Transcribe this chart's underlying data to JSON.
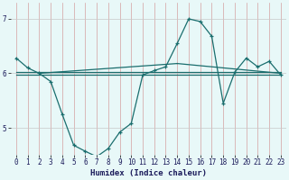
{
  "xlabel": "Humidex (Indice chaleur)",
  "bg_color": "#e8f8f8",
  "grid_color_v": "#d4a0a0",
  "grid_color_h": "#c8c8c8",
  "line_color": "#1a6e6e",
  "xlim": [
    -0.5,
    23.5
  ],
  "ylim": [
    4.5,
    7.3
  ],
  "yticks": [
    5,
    6,
    7
  ],
  "xticks": [
    0,
    1,
    2,
    3,
    4,
    5,
    6,
    7,
    8,
    9,
    10,
    11,
    12,
    13,
    14,
    15,
    16,
    17,
    18,
    19,
    20,
    21,
    22,
    23
  ],
  "main_line_x": [
    0,
    1,
    2,
    3,
    4,
    5,
    6,
    7,
    8,
    9,
    10,
    11,
    12,
    13,
    14,
    15,
    16,
    17,
    18,
    19,
    20,
    21,
    22,
    23
  ],
  "main_line_y": [
    6.28,
    6.1,
    6.0,
    5.85,
    5.25,
    4.68,
    4.57,
    4.47,
    4.62,
    4.92,
    5.08,
    5.97,
    6.05,
    6.12,
    6.55,
    7.0,
    6.95,
    6.68,
    5.45,
    6.02,
    6.28,
    6.12,
    6.22,
    5.97
  ],
  "ref_lines": [
    {
      "x": [
        0,
        23
      ],
      "y": [
        6.02,
        6.02
      ]
    },
    {
      "x": [
        0,
        23
      ],
      "y": [
        5.97,
        5.97
      ]
    },
    {
      "x": [
        2,
        23
      ],
      "y": [
        6.0,
        6.18
      ]
    },
    {
      "x": [
        2,
        23
      ],
      "y": [
        5.95,
        6.15
      ]
    }
  ]
}
